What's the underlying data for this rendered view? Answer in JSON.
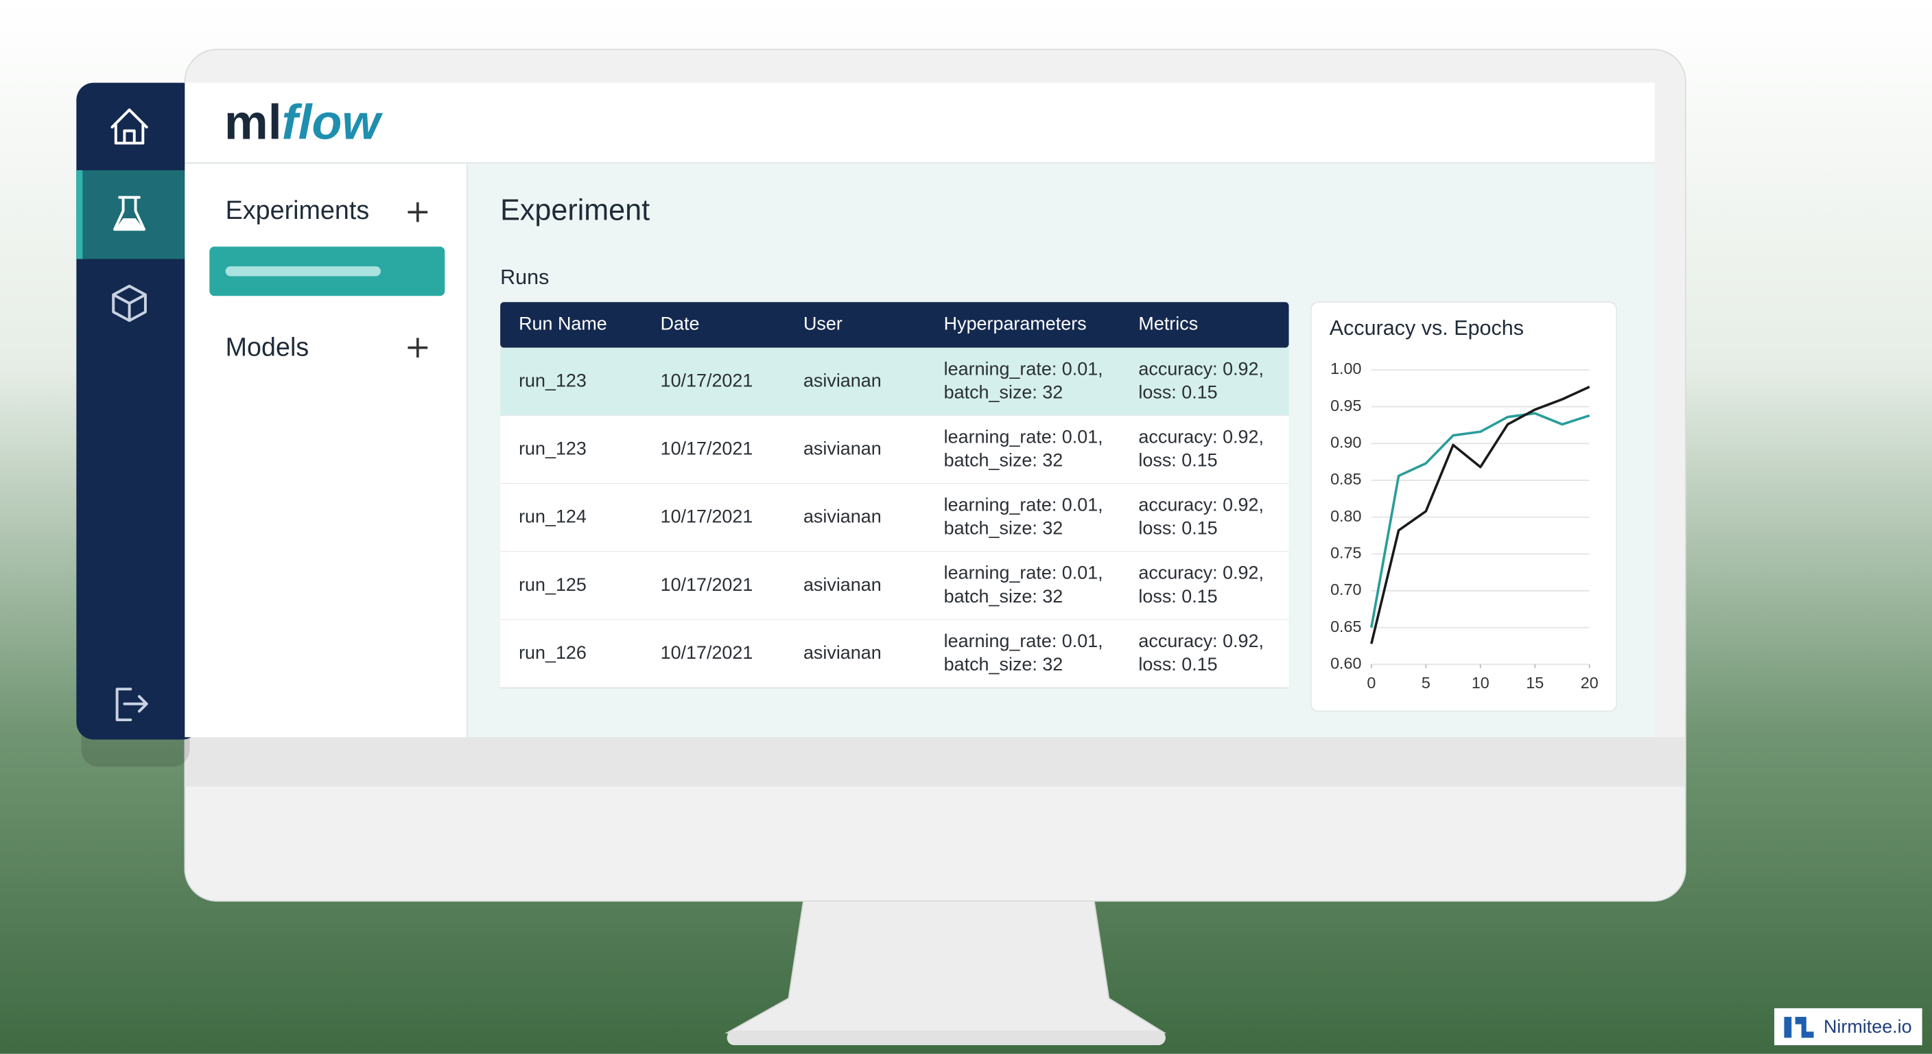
{
  "logo": [
    "ml",
    "flow"
  ],
  "sidebar": {
    "experiments": "Experiments",
    "models": "Models"
  },
  "main": {
    "title": "Experiment",
    "runs_label": "Runs"
  },
  "table": {
    "columns": [
      "Run Name",
      "Date",
      "User",
      "Hyperparameters",
      "Metrics"
    ],
    "rows": [
      [
        "run_123",
        "10/17/2021",
        "asivianan",
        [
          "learning_rate: 0.01,",
          "batch_size: 32"
        ],
        [
          "accuracy: 0.92,",
          "loss: 0.15"
        ]
      ],
      [
        "run_123",
        "10/17/2021",
        "asivianan",
        [
          "learning_rate: 0.01,",
          "batch_size: 32"
        ],
        [
          "accuracy: 0.92,",
          "loss: 0.15"
        ]
      ],
      [
        "run_124",
        "10/17/2021",
        "asivianan",
        [
          "learning_rate: 0.01,",
          "batch_size: 32"
        ],
        [
          "accuracy: 0.92,",
          "loss: 0.15"
        ]
      ],
      [
        "run_125",
        "10/17/2021",
        "asivianan",
        [
          "learning_rate: 0.01,",
          "batch_size: 32"
        ],
        [
          "accuracy: 0.92,",
          "loss: 0.15"
        ]
      ],
      [
        "run_126",
        "10/17/2021",
        "asivianan",
        [
          "learning_rate: 0.01,",
          "batch_size: 32"
        ],
        [
          "accuracy: 0.92,",
          "loss: 0.15"
        ]
      ]
    ]
  },
  "chart_data": {
    "type": "line",
    "title": "Accuracy vs. Epochs",
    "x": [
      0,
      2.5,
      5,
      7.5,
      10,
      12.5,
      15,
      17.5,
      20
    ],
    "series": [
      {
        "color": "#2a9d9a",
        "values": [
          0.65,
          0.856,
          0.873,
          0.911,
          0.916,
          0.936,
          0.941,
          0.926,
          0.938
        ]
      },
      {
        "color": "#1a1a1a",
        "values": [
          0.628,
          0.782,
          0.808,
          0.898,
          0.868,
          0.926,
          0.946,
          0.96,
          0.977
        ]
      }
    ],
    "xlim": [
      0,
      20
    ],
    "ylim": [
      0.6,
      1.0
    ],
    "xticks": [
      0,
      5,
      10,
      15,
      20
    ],
    "yticks": [
      {
        "value": 1.0,
        "label": "1.00"
      },
      0.95,
      {
        "value": 0.9,
        "label": "0.90"
      },
      0.85,
      {
        "value": 0.8,
        "label": "0.80"
      },
      0.75,
      {
        "value": 0.7,
        "label": "0.70"
      },
      0.65,
      {
        "value": 0.6,
        "label": "0.60"
      }
    ],
    "grid": true
  },
  "watermark": "Nirmitee.io"
}
